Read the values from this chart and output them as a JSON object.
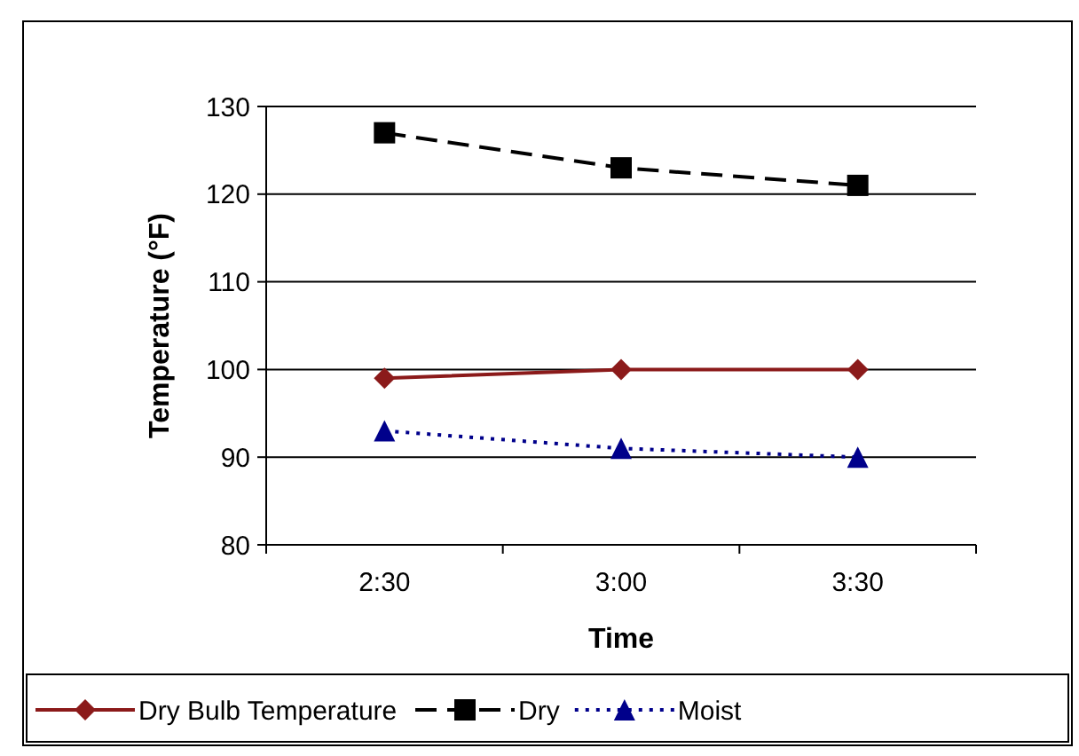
{
  "chart_data": {
    "type": "line",
    "xlabel": "Time",
    "ylabel": "Temperature (°F)",
    "categories": [
      "2:30",
      "3:00",
      "3:30"
    ],
    "series": [
      {
        "name": "Dry Bulb Temperature",
        "color": "#8b1a1a",
        "values": [
          99,
          100,
          100
        ],
        "marker": "diamond",
        "line_style": "solid"
      },
      {
        "name": "Dry",
        "color": "#000000",
        "values": [
          127,
          123,
          121
        ],
        "marker": "square",
        "line_style": "dashed"
      },
      {
        "name": "Moist",
        "color": "#00008b",
        "values": [
          93,
          91,
          90
        ],
        "marker": "triangle",
        "line_style": "dotted"
      }
    ],
    "ylim": [
      80,
      130
    ],
    "yticks": [
      80,
      90,
      100,
      110,
      120,
      130
    ],
    "grid": "y",
    "legend": "bottom"
  }
}
